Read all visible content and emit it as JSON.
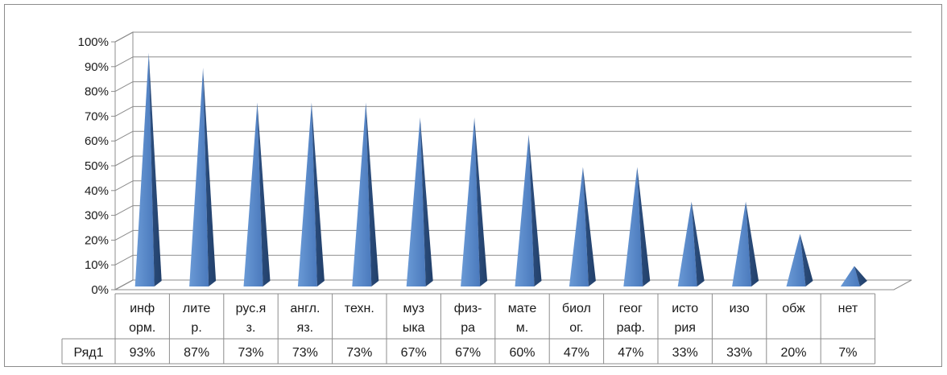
{
  "chart_data": {
    "type": "bar",
    "bar_shape": "pyramid",
    "perspective": "3d",
    "categories": [
      [
        "инф",
        "орм."
      ],
      [
        "лите",
        "р."
      ],
      [
        "рус.я",
        "з."
      ],
      [
        "англ.",
        "яз."
      ],
      [
        "техн."
      ],
      [
        "муз",
        "ыка"
      ],
      [
        "физ-",
        "ра"
      ],
      [
        "мате",
        "м."
      ],
      [
        "биол",
        "ог."
      ],
      [
        "геог",
        "раф."
      ],
      [
        "исто",
        "рия"
      ],
      [
        "изо"
      ],
      [
        "обж"
      ],
      [
        "нет"
      ]
    ],
    "series": [
      {
        "name": "Ряд1",
        "values": [
          93,
          87,
          73,
          73,
          73,
          67,
          67,
          60,
          47,
          47,
          33,
          33,
          20,
          7
        ],
        "labels": [
          "93%",
          "87%",
          "73%",
          "73%",
          "73%",
          "67%",
          "67%",
          "60%",
          "47%",
          "47%",
          "33%",
          "33%",
          "20%",
          "7%"
        ],
        "color": "#4f81bd"
      }
    ],
    "yticks": [
      "0%",
      "10%",
      "20%",
      "30%",
      "40%",
      "50%",
      "60%",
      "70%",
      "80%",
      "90%",
      "100%"
    ],
    "ylim": [
      0,
      100
    ],
    "grid": true,
    "data_table": true,
    "legend": "none"
  }
}
